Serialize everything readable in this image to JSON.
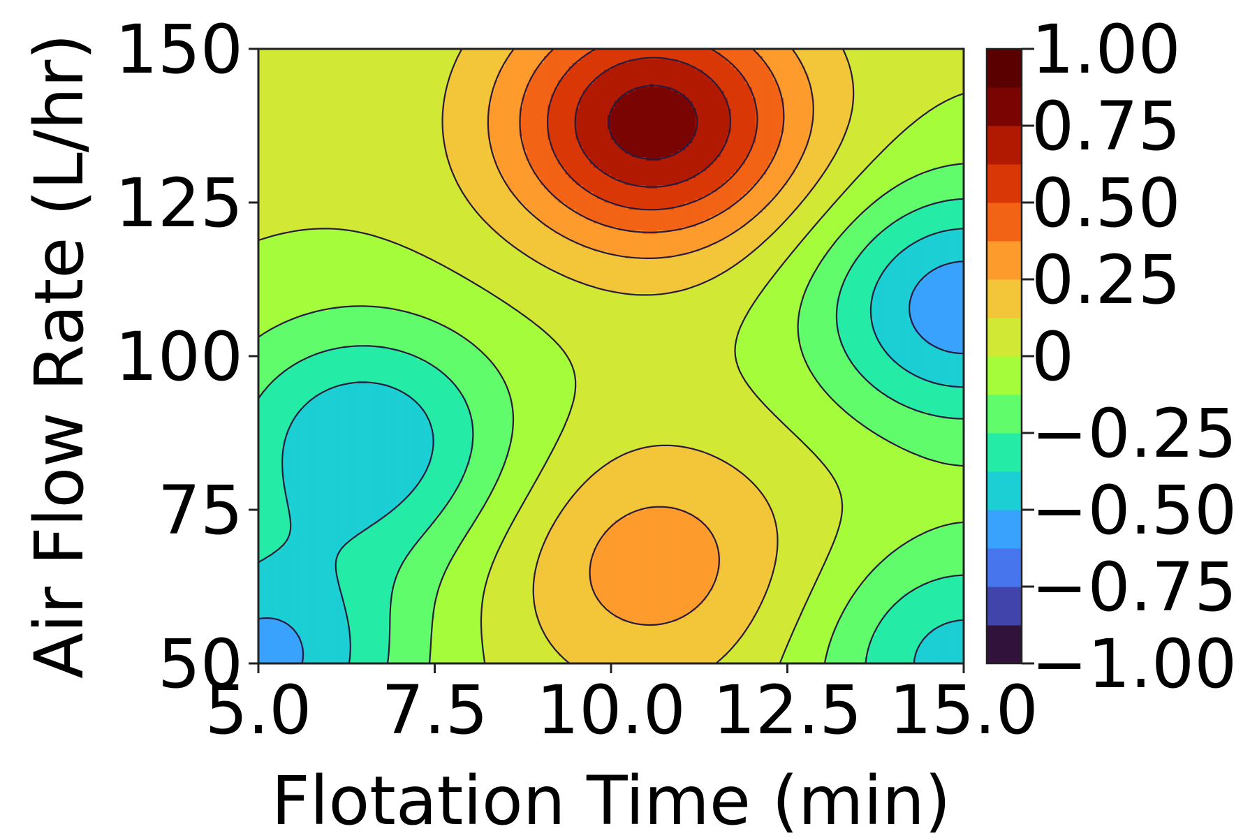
{
  "chart_data": {
    "type": "heatmap",
    "subtype": "filled-contour",
    "xlabel": "Flotation Time (min)",
    "ylabel": "Air Flow Rate (L/hr)",
    "x_ticks": [
      "5.0",
      "7.5",
      "10.0",
      "12.5",
      "15.0"
    ],
    "y_ticks": [
      "50",
      "75",
      "100",
      "125",
      "150"
    ],
    "xlim": [
      5.0,
      15.0
    ],
    "ylim": [
      50,
      150
    ],
    "colorbar": {
      "range": [
        -1.0,
        1.0
      ],
      "ticks": [
        "−1.00",
        "−0.75",
        "−0.50",
        "−0.25",
        "0",
        "0.25",
        "0.50",
        "0.75",
        "1.00"
      ],
      "levels": [
        -1.0,
        -0.875,
        -0.75,
        -0.625,
        -0.5,
        -0.375,
        -0.25,
        -0.125,
        0.0,
        0.125,
        0.25,
        0.375,
        0.5,
        0.625,
        0.75,
        0.875,
        1.0
      ],
      "colors": [
        "#30123b",
        "#4145ab",
        "#4675ed",
        "#39a2fc",
        "#1bcfd4",
        "#24eca6",
        "#61fc6c",
        "#a4fc3b",
        "#d1e834",
        "#f3c63a",
        "#fe9b2d",
        "#f36315",
        "#d93806",
        "#b11901",
        "#7a0402",
        "#5a0000"
      ]
    },
    "features": [
      {
        "type": "peak",
        "x": 10.6,
        "y": 138,
        "value": 0.8
      },
      {
        "type": "peak",
        "x": 10.6,
        "y": 66,
        "value": 0.3
      },
      {
        "type": "trough",
        "x": 6.5,
        "y": 86,
        "value": -0.5
      },
      {
        "type": "trough",
        "x": 15.0,
        "y": 108,
        "value": -0.6
      },
      {
        "type": "trough",
        "x": 5.0,
        "y": 50,
        "value": -0.55
      },
      {
        "type": "trough",
        "x": 15.0,
        "y": 50,
        "value": -0.45
      }
    ]
  }
}
